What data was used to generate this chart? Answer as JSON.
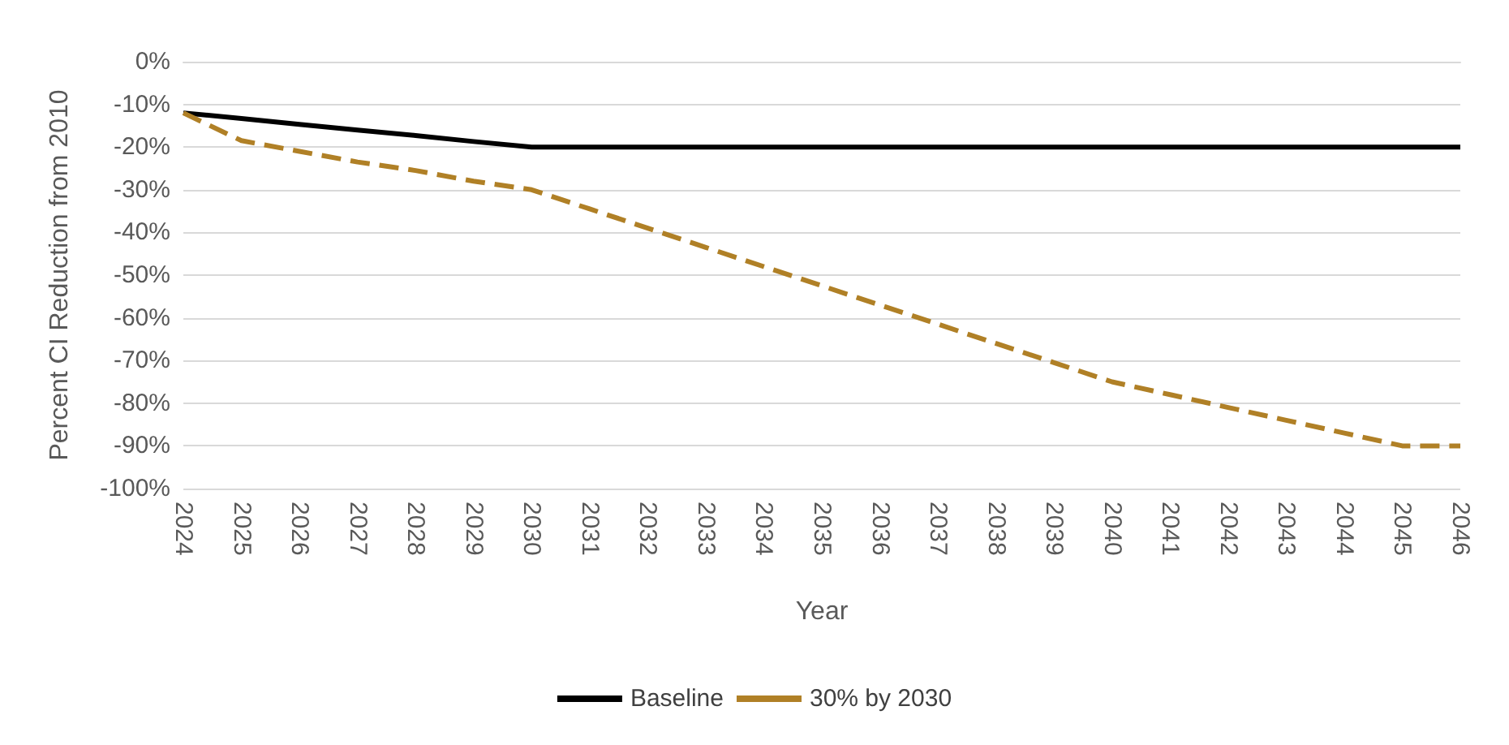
{
  "chart_data": {
    "type": "line",
    "xlabel": "Year",
    "ylabel": "Percent CI Reduction from 2010",
    "categories": [
      "2024",
      "2025",
      "2026",
      "2027",
      "2028",
      "2029",
      "2030",
      "2031",
      "2032",
      "2033",
      "2034",
      "2035",
      "2036",
      "2037",
      "2038",
      "2039",
      "2040",
      "2041",
      "2042",
      "2043",
      "2044",
      "2045",
      "2046"
    ],
    "series": [
      {
        "name": "Baseline",
        "color": "#000000",
        "line_style": "solid",
        "values": [
          -12,
          -13.3,
          -14.7,
          -16,
          -17.3,
          -18.7,
          -20,
          -20,
          -20,
          -20,
          -20,
          -20,
          -20,
          -20,
          -20,
          -20,
          -20,
          -20,
          -20,
          -20,
          -20,
          -20,
          -20
        ]
      },
      {
        "name": "30% by 2030",
        "color": "#b08026",
        "line_style": "dashed",
        "values": [
          -12,
          -18.5,
          -21,
          -23.5,
          -25.5,
          -28,
          -30,
          -34.5,
          -39,
          -43.5,
          -48,
          -52.5,
          -57,
          -61.5,
          -66,
          -70.5,
          -75,
          -78,
          -81,
          -84,
          -87,
          -90,
          -90
        ]
      }
    ],
    "ylim": [
      -100,
      0
    ],
    "yticks": [
      {
        "value": -100,
        "label": "-100%"
      },
      {
        "value": -90,
        "label": "-90%"
      },
      {
        "value": -80,
        "label": "-80%"
      },
      {
        "value": -70,
        "label": "-70%"
      },
      {
        "value": -60,
        "label": "-60%"
      },
      {
        "value": -50,
        "label": "-50%"
      },
      {
        "value": -40,
        "label": "-40%"
      },
      {
        "value": -30,
        "label": "-30%"
      },
      {
        "value": -20,
        "label": "-20%"
      },
      {
        "value": -10,
        "label": "-10%"
      },
      {
        "value": 0,
        "label": "0%"
      }
    ],
    "grid": "y",
    "legend": "bottom",
    "marker": "none"
  }
}
